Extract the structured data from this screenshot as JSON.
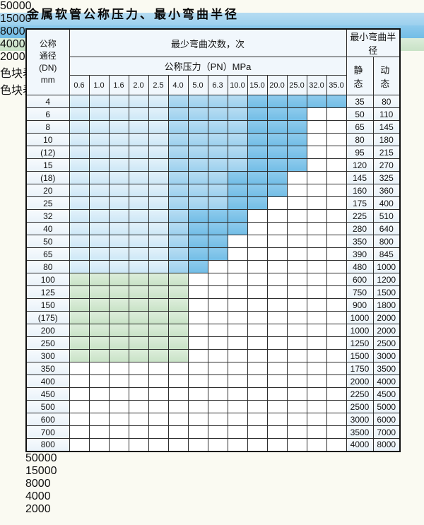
{
  "title": "金属软管公称压力、最小弯曲半径",
  "table": {
    "header": {
      "dn_lines": [
        "公称",
        "通径",
        "(DN)",
        "mm"
      ],
      "bend_cycles": "最少弯曲次数，次",
      "pressure": "公称压力（PN）MPa",
      "min_bend_radius": "最小弯曲半径",
      "static": "静 态",
      "dynamic": "动 态"
    },
    "pressure_columns": [
      "0.6",
      "1.0",
      "1.6",
      "2.0",
      "2.5",
      "4.0",
      "5.0",
      "6.3",
      "10.0",
      "15.0",
      "20.0",
      "25.0",
      "32.0",
      "35.0"
    ],
    "rows": [
      {
        "dn": "4",
        "cells": "AAAAABBBBCCCCC",
        "static": "35",
        "dynamic": "80"
      },
      {
        "dn": "6",
        "cells": "AAAAABBBBCCCNN",
        "static": "50",
        "dynamic": "110"
      },
      {
        "dn": "8",
        "cells": "AAAAABBBBCCCNN",
        "static": "65",
        "dynamic": "145"
      },
      {
        "dn": "10",
        "cells": "AAAAABBBBCCCNN",
        "static": "80",
        "dynamic": "180"
      },
      {
        "dn": "(12)",
        "cells": "AAAAABBBBCCCNN",
        "static": "95",
        "dynamic": "215"
      },
      {
        "dn": "15",
        "cells": "AAAAABBBBCCCNN",
        "static": "120",
        "dynamic": "270"
      },
      {
        "dn": "(18)",
        "cells": "AAAAABBBCCCNNN",
        "static": "145",
        "dynamic": "325"
      },
      {
        "dn": "20",
        "cells": "AAAAABBBCCCNNN",
        "static": "160",
        "dynamic": "360"
      },
      {
        "dn": "25",
        "cells": "AAAAABBBCCNNNN",
        "static": "175",
        "dynamic": "400"
      },
      {
        "dn": "32",
        "cells": "AAAAABCCCNNNNN",
        "static": "225",
        "dynamic": "510"
      },
      {
        "dn": "40",
        "cells": "AAAAABCCCNNNNN",
        "static": "280",
        "dynamic": "640"
      },
      {
        "dn": "50",
        "cells": "AAAAABCCNNNNNN",
        "static": "350",
        "dynamic": "800"
      },
      {
        "dn": "65",
        "cells": "AAAAABCCNNNNNN",
        "static": "390",
        "dynamic": "845"
      },
      {
        "dn": "80",
        "cells": "AAAAABCNNNNNNN",
        "static": "480",
        "dynamic": "1000"
      },
      {
        "dn": "100",
        "cells": "DDDDDDNNNNNNNN",
        "static": "600",
        "dynamic": "1200"
      },
      {
        "dn": "125",
        "cells": "DDDDDDNNNNNNNN",
        "static": "750",
        "dynamic": "1500"
      },
      {
        "dn": "150",
        "cells": "DDDDDDNNNNNNNN",
        "static": "900",
        "dynamic": "1800"
      },
      {
        "dn": "(175)",
        "cells": "DDDDDDNNNNNNNN",
        "static": "1000",
        "dynamic": "2000"
      },
      {
        "dn": "200",
        "cells": "DDDDDDNNNNNNNN",
        "static": "1000",
        "dynamic": "2000"
      },
      {
        "dn": "250",
        "cells": "DDDDDDNNNNNNNN",
        "static": "1250",
        "dynamic": "2500"
      },
      {
        "dn": "300",
        "cells": "DDDDDDNNNNNNNN",
        "static": "1500",
        "dynamic": "3000"
      },
      {
        "dn": "350",
        "cells": "EEEEENNNNNNNNN",
        "static": "1750",
        "dynamic": "3500"
      },
      {
        "dn": "400",
        "cells": "EEEEENNNNNNNNN",
        "static": "2000",
        "dynamic": "4000"
      },
      {
        "dn": "450",
        "cells": "EEEEENNNNNNNNN",
        "static": "2250",
        "dynamic": "4500"
      },
      {
        "dn": "500",
        "cells": "EEEENNNNNNNNNN",
        "static": "2500",
        "dynamic": "5000"
      },
      {
        "dn": "600",
        "cells": "EEENNNNNNNNNNN",
        "static": "3000",
        "dynamic": "6000"
      },
      {
        "dn": "700",
        "cells": "EEENNNNNNNNNNN",
        "static": "3500",
        "dynamic": "7000"
      },
      {
        "dn": "800",
        "cells": "EEENNNNNNNNNNN",
        "static": "4000",
        "dynamic": "8000"
      }
    ]
  },
  "category_colors": {
    "50000": "#d7ebf8",
    "15000": "#a9d5ef",
    "8000": "#7fc2e8",
    "4000": "#d2e7d2",
    "2000": "#93cb9e",
    "no_spec": "#eef5fb"
  },
  "overlay_labels": [
    {
      "text": "50000",
      "col": 2,
      "span": 2,
      "row_boundary": 4
    },
    {
      "text": "15000",
      "col": 6,
      "span": 2,
      "row_boundary": 4
    },
    {
      "text": "8000",
      "col": 9,
      "span": 2,
      "row_boundary": 4
    },
    {
      "text": "4000",
      "col": 2,
      "span": 2,
      "row_boundary": 18
    },
    {
      "text": "2000",
      "col": 1,
      "span": 2,
      "row_boundary": 25
    }
  ],
  "legend": {
    "blue_items": [
      "50000",
      "15000",
      "8000"
    ],
    "green_items": [
      "4000",
      "2000"
    ],
    "has_spec_text": "色块表示有此规格",
    "no_spec_text": "色块表示无此规格"
  }
}
